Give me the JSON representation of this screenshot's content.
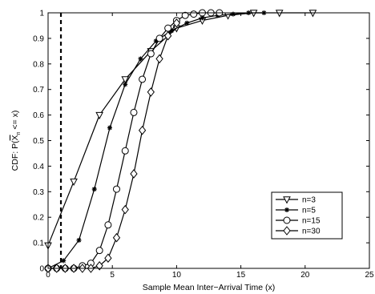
{
  "chart_data": {
    "type": "line",
    "title": "",
    "xlabel": "Sample Mean Inter−Arrival Time (x)",
    "ylabel_prefix": "CDF: P(",
    "ylabel_var": "X",
    "ylabel_sub": "n",
    "ylabel_suffix": " <= x)",
    "xlim": [
      0,
      25
    ],
    "ylim": [
      0,
      1
    ],
    "xticks": [
      0,
      5,
      10,
      15,
      20,
      25
    ],
    "yticks": [
      0,
      0.1,
      0.2,
      0.3,
      0.4,
      0.5,
      0.6,
      0.7,
      0.8,
      0.9,
      1
    ],
    "grid": false,
    "legend_position": "lower-right",
    "vline": {
      "x": 1,
      "style": "dashed"
    },
    "series": [
      {
        "name": "n=3",
        "marker": "triangle-down",
        "x": [
          0,
          2,
          4,
          6,
          8,
          10,
          12,
          14,
          16,
          18,
          20.6
        ],
        "y": [
          0.09,
          0.34,
          0.6,
          0.74,
          0.85,
          0.94,
          0.97,
          0.99,
          1.0,
          1.0,
          1.0
        ]
      },
      {
        "name": "n=5",
        "marker": "asterisk",
        "x": [
          0,
          1.2,
          2.4,
          3.6,
          4.8,
          6,
          7.2,
          8.4,
          9.6,
          10.8,
          12,
          13.2,
          14.4,
          15.6,
          16.8
        ],
        "y": [
          0.0,
          0.03,
          0.11,
          0.31,
          0.55,
          0.72,
          0.82,
          0.89,
          0.93,
          0.96,
          0.98,
          0.99,
          0.995,
          1.0,
          1.0
        ]
      },
      {
        "name": "n=15",
        "marker": "circle",
        "x": [
          0,
          0.67,
          1.33,
          2,
          2.67,
          3.33,
          4,
          4.67,
          5.33,
          6,
          6.67,
          7.33,
          8,
          8.67,
          9.33,
          10,
          10.67,
          11.33,
          12,
          12.67,
          13.33
        ],
        "y": [
          0.0,
          0.0,
          0.0,
          0.0,
          0.01,
          0.02,
          0.07,
          0.17,
          0.31,
          0.46,
          0.61,
          0.74,
          0.84,
          0.9,
          0.94,
          0.97,
          0.99,
          0.995,
          1.0,
          1.0,
          1.0
        ]
      },
      {
        "name": "n=30",
        "marker": "diamond",
        "x": [
          0,
          0.67,
          1.33,
          2,
          2.67,
          3.33,
          4,
          4.67,
          5.33,
          6,
          6.67,
          7.33,
          8,
          8.67,
          9.33,
          10
        ],
        "y": [
          0.0,
          0.0,
          0.0,
          0.0,
          0.0,
          0.0,
          0.01,
          0.04,
          0.12,
          0.23,
          0.37,
          0.54,
          0.69,
          0.82,
          0.91,
          0.96
        ]
      }
    ]
  }
}
